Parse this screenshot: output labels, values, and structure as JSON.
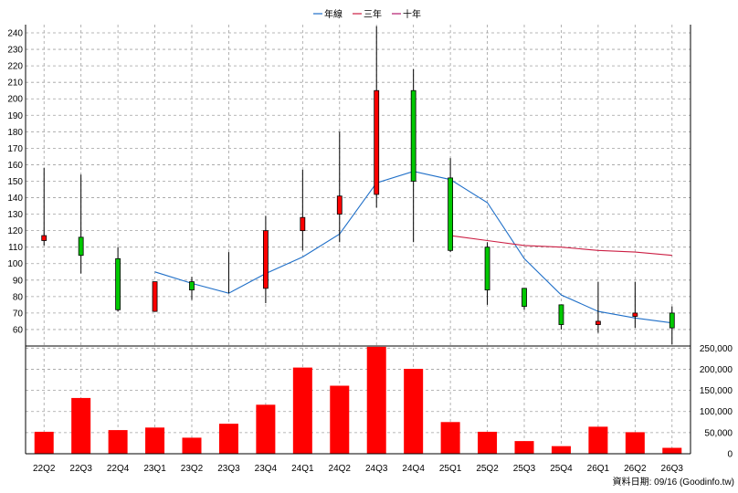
{
  "legend": {
    "items": [
      {
        "label": "年線",
        "color": "#1f6fc8"
      },
      {
        "label": "三年",
        "color": "#cc1f44"
      },
      {
        "label": "十年",
        "color": "#b41c6e"
      }
    ]
  },
  "footer": {
    "date_label": "資料日期: 09/16 (Goodinfo.tw)"
  },
  "chart_data": [
    {
      "type": "candlestick",
      "x_ticks": [
        "22Q2",
        "22Q3",
        "22Q4",
        "23Q1",
        "23Q2",
        "23Q3",
        "23Q4",
        "24Q1",
        "24Q2",
        "24Q3",
        "24Q4",
        "25Q1",
        "25Q2",
        "25Q3",
        "25Q4",
        "26Q1",
        "26Q2",
        "26Q3"
      ],
      "y_ticks": [
        60,
        70,
        80,
        90,
        100,
        110,
        120,
        130,
        140,
        150,
        160,
        170,
        180,
        190,
        200,
        210,
        220,
        230,
        240
      ],
      "ylim": [
        50,
        245
      ],
      "grid": true,
      "up_color": "#ff0000",
      "down_color": "#00c800",
      "candles": [
        {
          "open": 114,
          "high": 158,
          "low": 111,
          "close": 117
        },
        {
          "open": 116,
          "high": 154,
          "low": 94,
          "close": 105
        },
        {
          "open": 103,
          "high": 110,
          "low": 71,
          "close": 72
        },
        {
          "open": 71,
          "high": 89,
          "low": 71,
          "close": 89
        },
        {
          "open": 89,
          "high": 92,
          "low": 78,
          "close": 84
        },
        {
          "open": null,
          "high": 107,
          "low": 82,
          "close": null
        },
        {
          "open": 85,
          "high": 129,
          "low": 76,
          "close": 120
        },
        {
          "open": 120,
          "high": 157,
          "low": 108,
          "close": 128
        },
        {
          "open": 130,
          "high": 180,
          "low": 113,
          "close": 141
        },
        {
          "open": 142,
          "high": 244,
          "low": 134,
          "close": 205
        },
        {
          "open": 205,
          "high": 218,
          "low": 113,
          "close": 150
        },
        {
          "open": 152,
          "high": 164,
          "low": 107,
          "close": 108
        },
        {
          "open": 110,
          "high": 113,
          "low": 75,
          "close": 84
        },
        {
          "open": 85,
          "high": 85,
          "low": 72,
          "close": 74
        },
        {
          "open": 75,
          "high": 75,
          "low": 60,
          "close": 63
        },
        {
          "open": 63,
          "high": 89,
          "low": 58,
          "close": 65
        },
        {
          "open": 68,
          "high": 89,
          "low": 61,
          "close": 70
        },
        {
          "open": 70,
          "high": 74,
          "low": 51,
          "close": 61
        }
      ],
      "series": [
        {
          "name": "年線",
          "color": "#1f6fc8",
          "values": [
            null,
            null,
            null,
            95,
            88,
            82,
            94,
            104,
            118,
            149,
            156,
            151,
            137,
            103,
            81,
            71,
            67,
            64
          ]
        },
        {
          "name": "三年",
          "color": "#cc1f44",
          "values": [
            null,
            null,
            null,
            null,
            null,
            null,
            null,
            null,
            null,
            null,
            null,
            117,
            114,
            111,
            110,
            108,
            107,
            105
          ]
        }
      ]
    },
    {
      "type": "bar",
      "categories": [
        "22Q2",
        "22Q3",
        "22Q4",
        "23Q1",
        "23Q2",
        "23Q3",
        "23Q4",
        "24Q1",
        "24Q2",
        "24Q3",
        "24Q4",
        "25Q1",
        "25Q2",
        "25Q3",
        "25Q4",
        "26Q1",
        "26Q2",
        "26Q3"
      ],
      "values": [
        52000,
        132000,
        56000,
        62000,
        38000,
        71000,
        116000,
        204000,
        161000,
        253000,
        201000,
        75000,
        52000,
        30000,
        18000,
        64000,
        51000,
        14000
      ],
      "y_ticks": [
        "250,000",
        "200,000",
        "150,000",
        "100,000",
        "50,000",
        "0"
      ],
      "y_tick_values": [
        250000,
        200000,
        150000,
        100000,
        50000,
        0
      ],
      "ylim": [
        0,
        255000
      ],
      "bar_color": "#ff0000",
      "grid": true
    }
  ]
}
